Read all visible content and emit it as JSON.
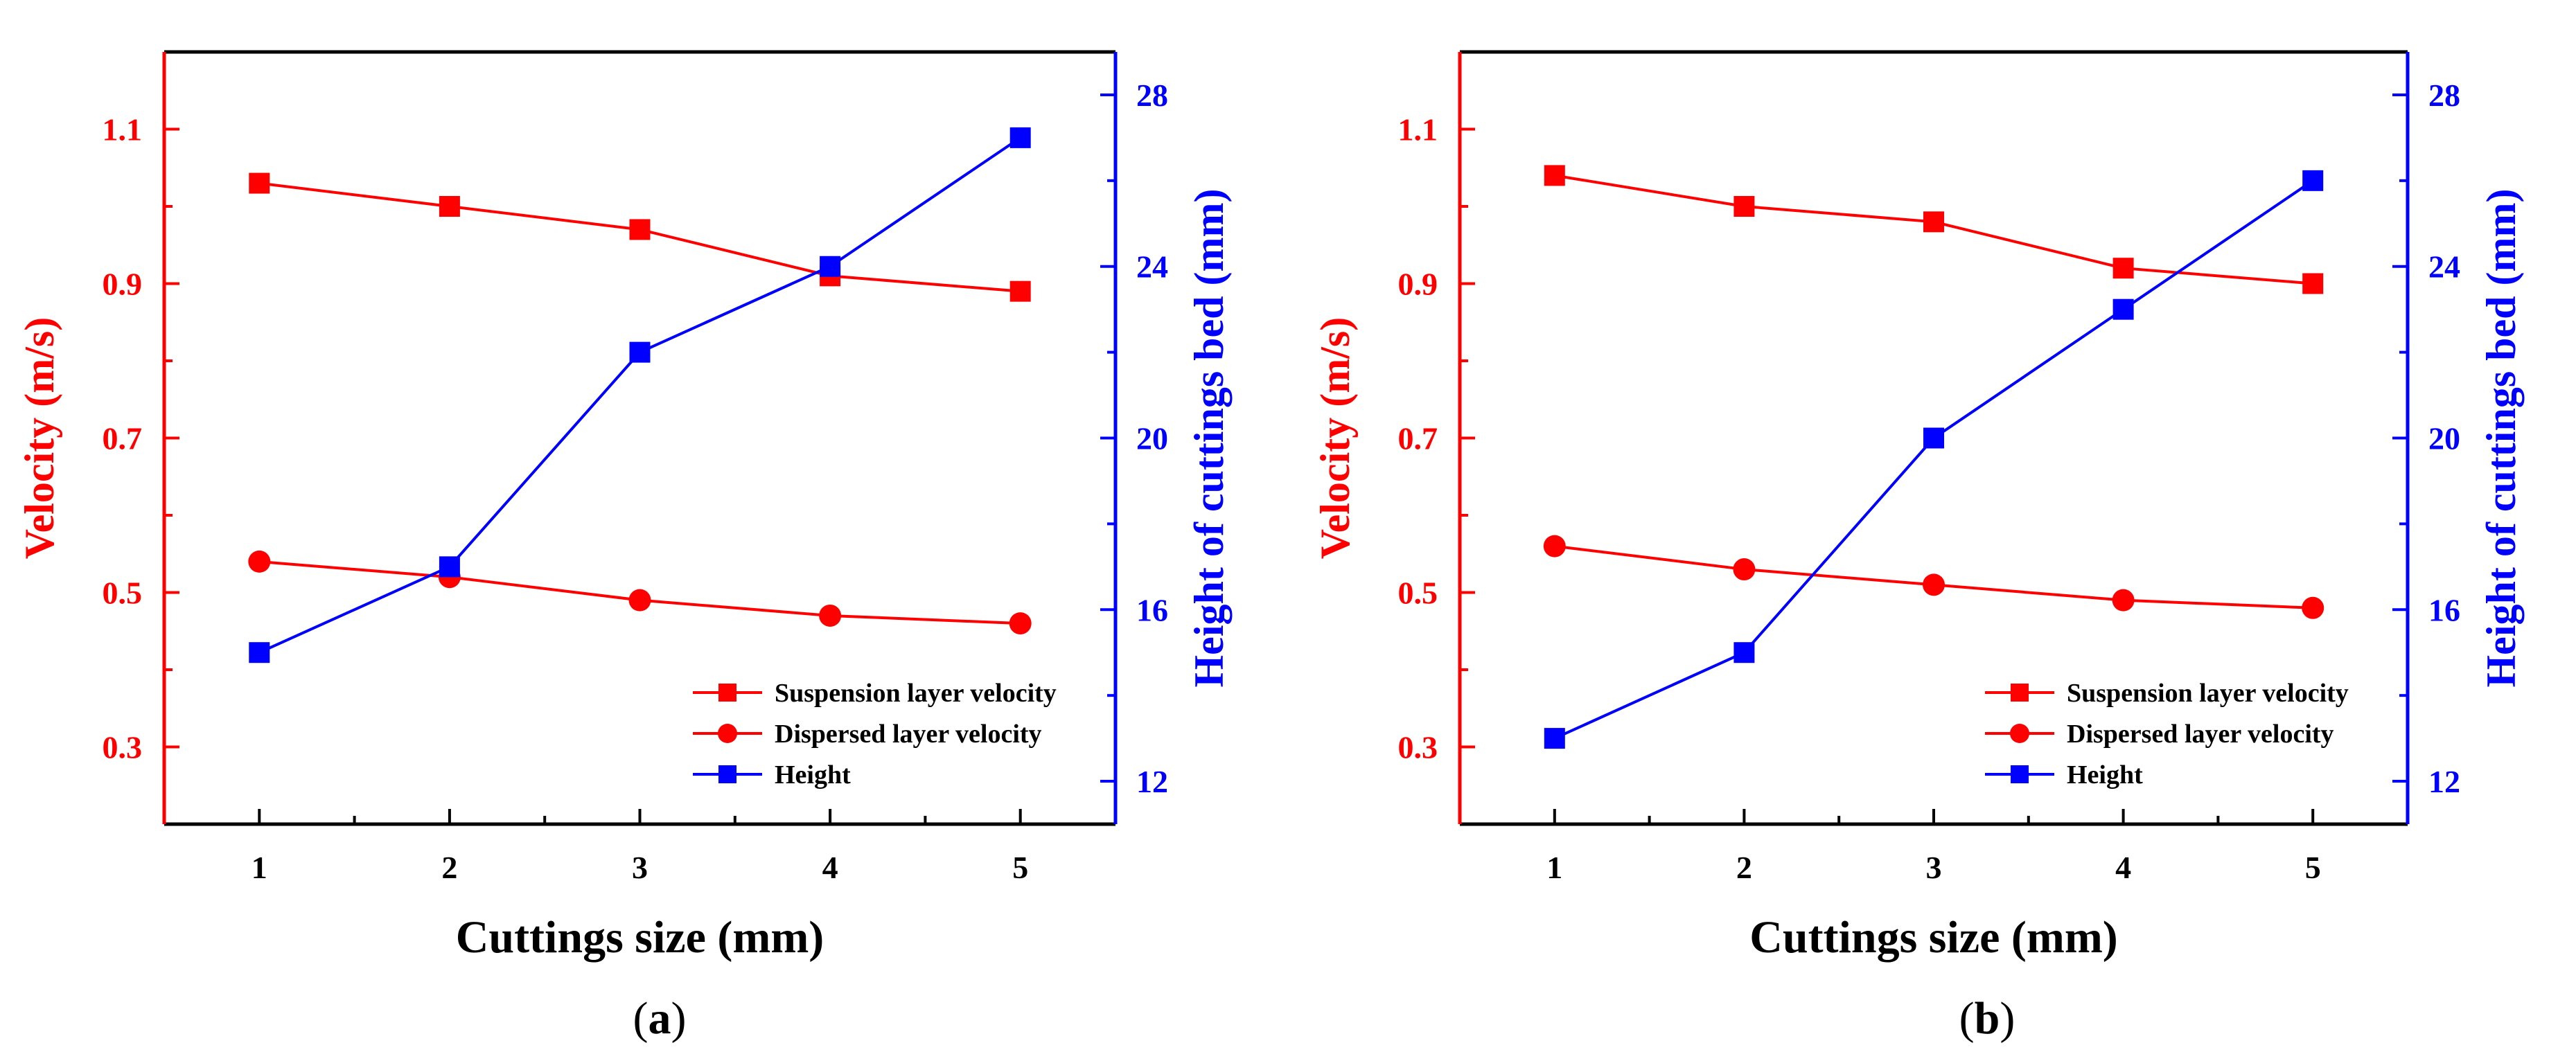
{
  "colors": {
    "left_axis": "#ff0000",
    "right_axis": "#0000ff",
    "frame": "#000000"
  },
  "panels": [
    {
      "caption_letter": "a"
    },
    {
      "caption_letter": "b"
    }
  ],
  "chart_data": [
    {
      "type": "line",
      "panel": "(a)",
      "title": "",
      "xlabel": "Cuttings size (mm)",
      "ylabel": "Velocity (m/s)",
      "y2label": "Height of cuttings bed (mm)",
      "x": [
        1,
        2,
        3,
        4,
        5
      ],
      "xticks": [
        "1",
        "2",
        "3",
        "4",
        "5"
      ],
      "xlim": [
        0.5,
        5.5
      ],
      "ylim": [
        0.2,
        1.2
      ],
      "yticks": [
        "0.3",
        "0.5",
        "0.7",
        "0.9",
        "1.1"
      ],
      "y2lim": [
        11,
        29
      ],
      "y2ticks": [
        "12",
        "16",
        "20",
        "24",
        "28"
      ],
      "series": [
        {
          "name": "Suspension layer velocity",
          "axis": "left",
          "marker": "square",
          "color": "#ff0000",
          "values": [
            1.03,
            1.0,
            0.97,
            0.91,
            0.89
          ]
        },
        {
          "name": "Dispersed layer velocity",
          "axis": "left",
          "marker": "circle",
          "color": "#ff0000",
          "values": [
            0.54,
            0.52,
            0.49,
            0.47,
            0.46
          ]
        },
        {
          "name": "Height",
          "axis": "right",
          "marker": "square",
          "color": "#0000ff",
          "values": [
            15,
            17,
            22,
            24,
            27
          ]
        }
      ],
      "legend": "bottom-right"
    },
    {
      "type": "line",
      "panel": "(b)",
      "title": "",
      "xlabel": "Cuttings size (mm)",
      "ylabel": "Velocity (m/s)",
      "y2label": "Height of cuttings bed (mm)",
      "x": [
        1,
        2,
        3,
        4,
        5
      ],
      "xticks": [
        "1",
        "2",
        "3",
        "4",
        "5"
      ],
      "xlim": [
        0.5,
        5.5
      ],
      "ylim": [
        0.2,
        1.2
      ],
      "yticks": [
        "0.3",
        "0.5",
        "0.7",
        "0.9",
        "1.1"
      ],
      "y2lim": [
        11,
        29
      ],
      "y2ticks": [
        "12",
        "16",
        "20",
        "24",
        "28"
      ],
      "series": [
        {
          "name": "Suspension layer velocity",
          "axis": "left",
          "marker": "square",
          "color": "#ff0000",
          "values": [
            1.04,
            1.0,
            0.98,
            0.92,
            0.9
          ]
        },
        {
          "name": "Dispersed layer velocity",
          "axis": "left",
          "marker": "circle",
          "color": "#ff0000",
          "values": [
            0.56,
            0.53,
            0.51,
            0.49,
            0.48
          ]
        },
        {
          "name": "Height",
          "axis": "right",
          "marker": "square",
          "color": "#0000ff",
          "values": [
            13,
            15,
            20,
            23,
            26
          ]
        }
      ],
      "legend": "bottom-right"
    }
  ]
}
